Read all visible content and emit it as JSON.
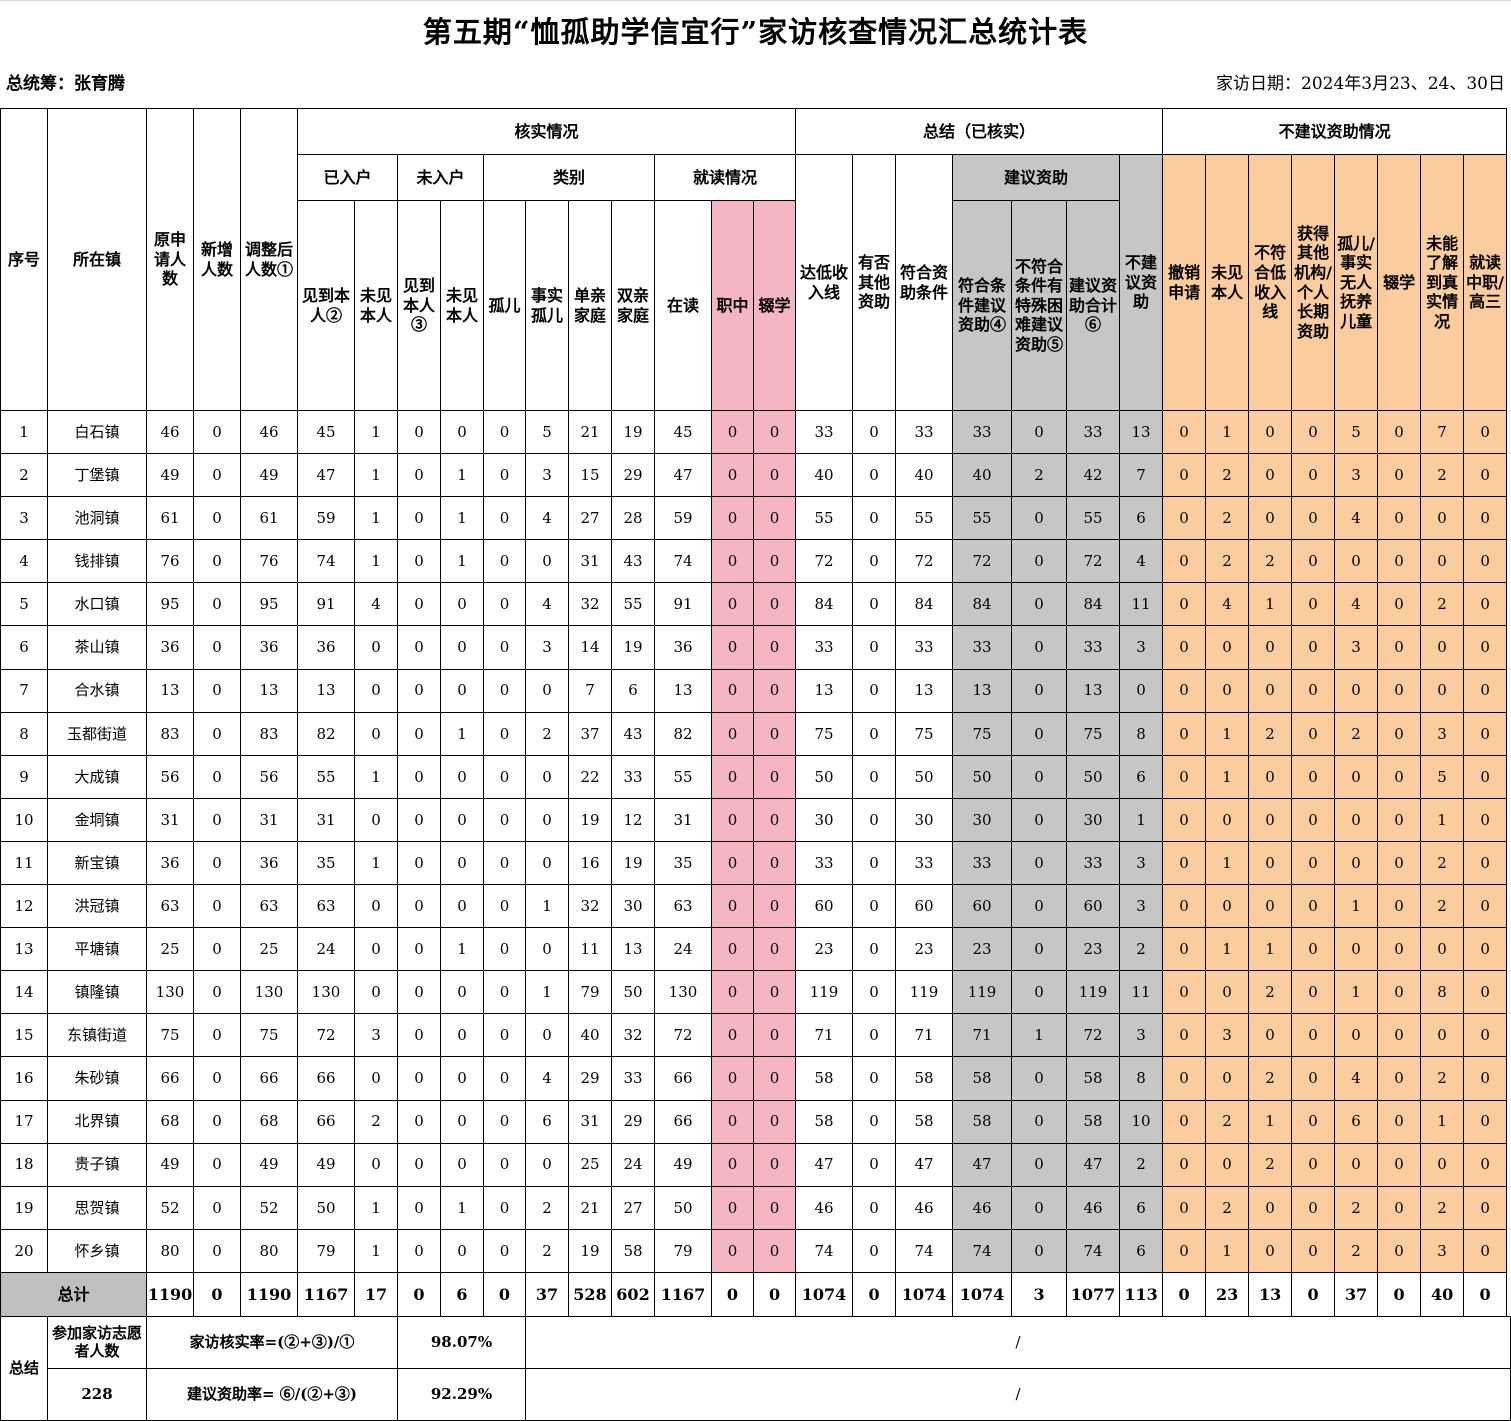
{
  "title": "第五期“恤孤助学信宜行”家访核查情况汇总统计表",
  "coordinator": "总统筹：张育腾",
  "visit_date": "家访日期：2024年3月23、24、30日",
  "headers": {
    "seq": "序号",
    "town": "所在镇",
    "orig": "原申请人数",
    "added": "新增人数",
    "adjusted": "调整后人数①",
    "verify_group": "核实情况",
    "entered": "已入户",
    "not_entered": "未入户",
    "category": "类别",
    "study": "就读情况",
    "summary_group": "总结（已核实）",
    "suggest_group": "建议资助",
    "not_suggest_group": "不建议资助情况",
    "sub": [
      "见到本人②",
      "未见本人",
      "见到本人③",
      "未见本人",
      "孤儿",
      "事实孤儿",
      "单亲家庭",
      "双亲家庭",
      "在读",
      "职中",
      "辍学",
      "达低收入线",
      "有否其他资助",
      "符合资助条件",
      "符合条件建议资助④",
      "不符合条件有特殊困难建议资助⑤",
      "建议资助合计⑥",
      "不建议资助",
      "撤销申请",
      "未见本人",
      "不符合低收入线",
      "获得其他机构/个人长期资助",
      "孤儿/事实无人抚养儿童",
      "辍学",
      "未能了解到真实情况",
      "就读中职/高三"
    ]
  },
  "rows": [
    [
      "1",
      "白石镇",
      "46",
      "0",
      "46",
      "45",
      "1",
      "0",
      "0",
      "0",
      "5",
      "21",
      "19",
      "45",
      "0",
      "0",
      "33",
      "0",
      "33",
      "33",
      "0",
      "33",
      "13",
      "0",
      "1",
      "0",
      "0",
      "5",
      "0",
      "7",
      "0"
    ],
    [
      "2",
      "丁堡镇",
      "49",
      "0",
      "49",
      "47",
      "1",
      "0",
      "1",
      "0",
      "3",
      "15",
      "29",
      "47",
      "0",
      "0",
      "40",
      "0",
      "40",
      "40",
      "2",
      "42",
      "7",
      "0",
      "2",
      "0",
      "0",
      "3",
      "0",
      "2",
      "0"
    ],
    [
      "3",
      "池洞镇",
      "61",
      "0",
      "61",
      "59",
      "1",
      "0",
      "1",
      "0",
      "4",
      "27",
      "28",
      "59",
      "0",
      "0",
      "55",
      "0",
      "55",
      "55",
      "0",
      "55",
      "6",
      "0",
      "2",
      "0",
      "0",
      "4",
      "0",
      "0",
      "0"
    ],
    [
      "4",
      "钱排镇",
      "76",
      "0",
      "76",
      "74",
      "1",
      "0",
      "1",
      "0",
      "0",
      "31",
      "43",
      "74",
      "0",
      "0",
      "72",
      "0",
      "72",
      "72",
      "0",
      "72",
      "4",
      "0",
      "2",
      "2",
      "0",
      "0",
      "0",
      "0",
      "0"
    ],
    [
      "5",
      "水口镇",
      "95",
      "0",
      "95",
      "91",
      "4",
      "0",
      "0",
      "0",
      "4",
      "32",
      "55",
      "91",
      "0",
      "0",
      "84",
      "0",
      "84",
      "84",
      "0",
      "84",
      "11",
      "0",
      "4",
      "1",
      "0",
      "4",
      "0",
      "2",
      "0"
    ],
    [
      "6",
      "茶山镇",
      "36",
      "0",
      "36",
      "36",
      "0",
      "0",
      "0",
      "0",
      "3",
      "14",
      "19",
      "36",
      "0",
      "0",
      "33",
      "0",
      "33",
      "33",
      "0",
      "33",
      "3",
      "0",
      "0",
      "0",
      "0",
      "3",
      "0",
      "0",
      "0"
    ],
    [
      "7",
      "合水镇",
      "13",
      "0",
      "13",
      "13",
      "0",
      "0",
      "0",
      "0",
      "0",
      "7",
      "6",
      "13",
      "0",
      "0",
      "13",
      "0",
      "13",
      "13",
      "0",
      "13",
      "0",
      "0",
      "0",
      "0",
      "0",
      "0",
      "0",
      "0",
      "0"
    ],
    [
      "8",
      "玉都街道",
      "83",
      "0",
      "83",
      "82",
      "0",
      "0",
      "1",
      "0",
      "2",
      "37",
      "43",
      "82",
      "0",
      "0",
      "75",
      "0",
      "75",
      "75",
      "0",
      "75",
      "8",
      "0",
      "1",
      "2",
      "0",
      "2",
      "0",
      "3",
      "0"
    ],
    [
      "9",
      "大成镇",
      "56",
      "0",
      "56",
      "55",
      "1",
      "0",
      "0",
      "0",
      "0",
      "22",
      "33",
      "55",
      "0",
      "0",
      "50",
      "0",
      "50",
      "50",
      "0",
      "50",
      "6",
      "0",
      "1",
      "0",
      "0",
      "0",
      "0",
      "5",
      "0"
    ],
    [
      "10",
      "金垌镇",
      "31",
      "0",
      "31",
      "31",
      "0",
      "0",
      "0",
      "0",
      "0",
      "19",
      "12",
      "31",
      "0",
      "0",
      "30",
      "0",
      "30",
      "30",
      "0",
      "30",
      "1",
      "0",
      "0",
      "0",
      "0",
      "0",
      "0",
      "1",
      "0"
    ],
    [
      "11",
      "新宝镇",
      "36",
      "0",
      "36",
      "35",
      "1",
      "0",
      "0",
      "0",
      "0",
      "16",
      "19",
      "35",
      "0",
      "0",
      "33",
      "0",
      "33",
      "33",
      "0",
      "33",
      "3",
      "0",
      "1",
      "0",
      "0",
      "0",
      "0",
      "2",
      "0"
    ],
    [
      "12",
      "洪冠镇",
      "63",
      "0",
      "63",
      "63",
      "0",
      "0",
      "0",
      "0",
      "1",
      "32",
      "30",
      "63",
      "0",
      "0",
      "60",
      "0",
      "60",
      "60",
      "0",
      "60",
      "3",
      "0",
      "0",
      "0",
      "0",
      "1",
      "0",
      "2",
      "0"
    ],
    [
      "13",
      "平塘镇",
      "25",
      "0",
      "25",
      "24",
      "0",
      "0",
      "1",
      "0",
      "0",
      "11",
      "13",
      "24",
      "0",
      "0",
      "23",
      "0",
      "23",
      "23",
      "0",
      "23",
      "2",
      "0",
      "1",
      "1",
      "0",
      "0",
      "0",
      "0",
      "0"
    ],
    [
      "14",
      "镇隆镇",
      "130",
      "0",
      "130",
      "130",
      "0",
      "0",
      "0",
      "0",
      "1",
      "79",
      "50",
      "130",
      "0",
      "0",
      "119",
      "0",
      "119",
      "119",
      "0",
      "119",
      "11",
      "0",
      "0",
      "2",
      "0",
      "1",
      "0",
      "8",
      "0"
    ],
    [
      "15",
      "东镇街道",
      "75",
      "0",
      "75",
      "72",
      "3",
      "0",
      "0",
      "0",
      "0",
      "40",
      "32",
      "72",
      "0",
      "0",
      "71",
      "0",
      "71",
      "71",
      "1",
      "72",
      "3",
      "0",
      "3",
      "0",
      "0",
      "0",
      "0",
      "0",
      "0"
    ],
    [
      "16",
      "朱砂镇",
      "66",
      "0",
      "66",
      "66",
      "0",
      "0",
      "0",
      "0",
      "4",
      "29",
      "33",
      "66",
      "0",
      "0",
      "58",
      "0",
      "58",
      "58",
      "0",
      "58",
      "8",
      "0",
      "0",
      "2",
      "0",
      "4",
      "0",
      "2",
      "0"
    ],
    [
      "17",
      "北界镇",
      "68",
      "0",
      "68",
      "66",
      "2",
      "0",
      "0",
      "0",
      "6",
      "31",
      "29",
      "66",
      "0",
      "0",
      "58",
      "0",
      "58",
      "58",
      "0",
      "58",
      "10",
      "0",
      "2",
      "1",
      "0",
      "6",
      "0",
      "1",
      "0"
    ],
    [
      "18",
      "贵子镇",
      "49",
      "0",
      "49",
      "49",
      "0",
      "0",
      "0",
      "0",
      "0",
      "25",
      "24",
      "49",
      "0",
      "0",
      "47",
      "0",
      "47",
      "47",
      "0",
      "47",
      "2",
      "0",
      "0",
      "2",
      "0",
      "0",
      "0",
      "0",
      "0"
    ],
    [
      "19",
      "思贺镇",
      "52",
      "0",
      "52",
      "50",
      "1",
      "0",
      "1",
      "0",
      "2",
      "21",
      "27",
      "50",
      "0",
      "0",
      "46",
      "0",
      "46",
      "46",
      "0",
      "46",
      "6",
      "0",
      "2",
      "0",
      "0",
      "2",
      "0",
      "2",
      "0"
    ],
    [
      "20",
      "怀乡镇",
      "80",
      "0",
      "80",
      "79",
      "1",
      "0",
      "0",
      "0",
      "2",
      "19",
      "58",
      "79",
      "0",
      "0",
      "74",
      "0",
      "74",
      "74",
      "0",
      "74",
      "6",
      "0",
      "1",
      "0",
      "0",
      "2",
      "0",
      "3",
      "0"
    ]
  ],
  "total": {
    "label": "总计",
    "values": [
      "1190",
      "0",
      "1190",
      "1167",
      "17",
      "0",
      "6",
      "0",
      "37",
      "528",
      "602",
      "1167",
      "0",
      "0",
      "1074",
      "0",
      "1074",
      "1074",
      "3",
      "1077",
      "113",
      "0",
      "23",
      "13",
      "0",
      "37",
      "0",
      "40",
      "0"
    ]
  },
  "summary": {
    "label": "总结",
    "volunteers_label": "参加家访志愿者人数",
    "volunteers_value": "228",
    "verify_rate_label": "家访核实率=(②+③)/①",
    "verify_rate_value": "98.07%",
    "fund_rate_label": "建议资助率= ⑥/(②+③)",
    "fund_rate_value": "92.29%",
    "slash": "/"
  },
  "colors": {
    "pink": "#f4b6c2",
    "gray": "#c6c6c6",
    "orange": "#fbcc9e"
  }
}
